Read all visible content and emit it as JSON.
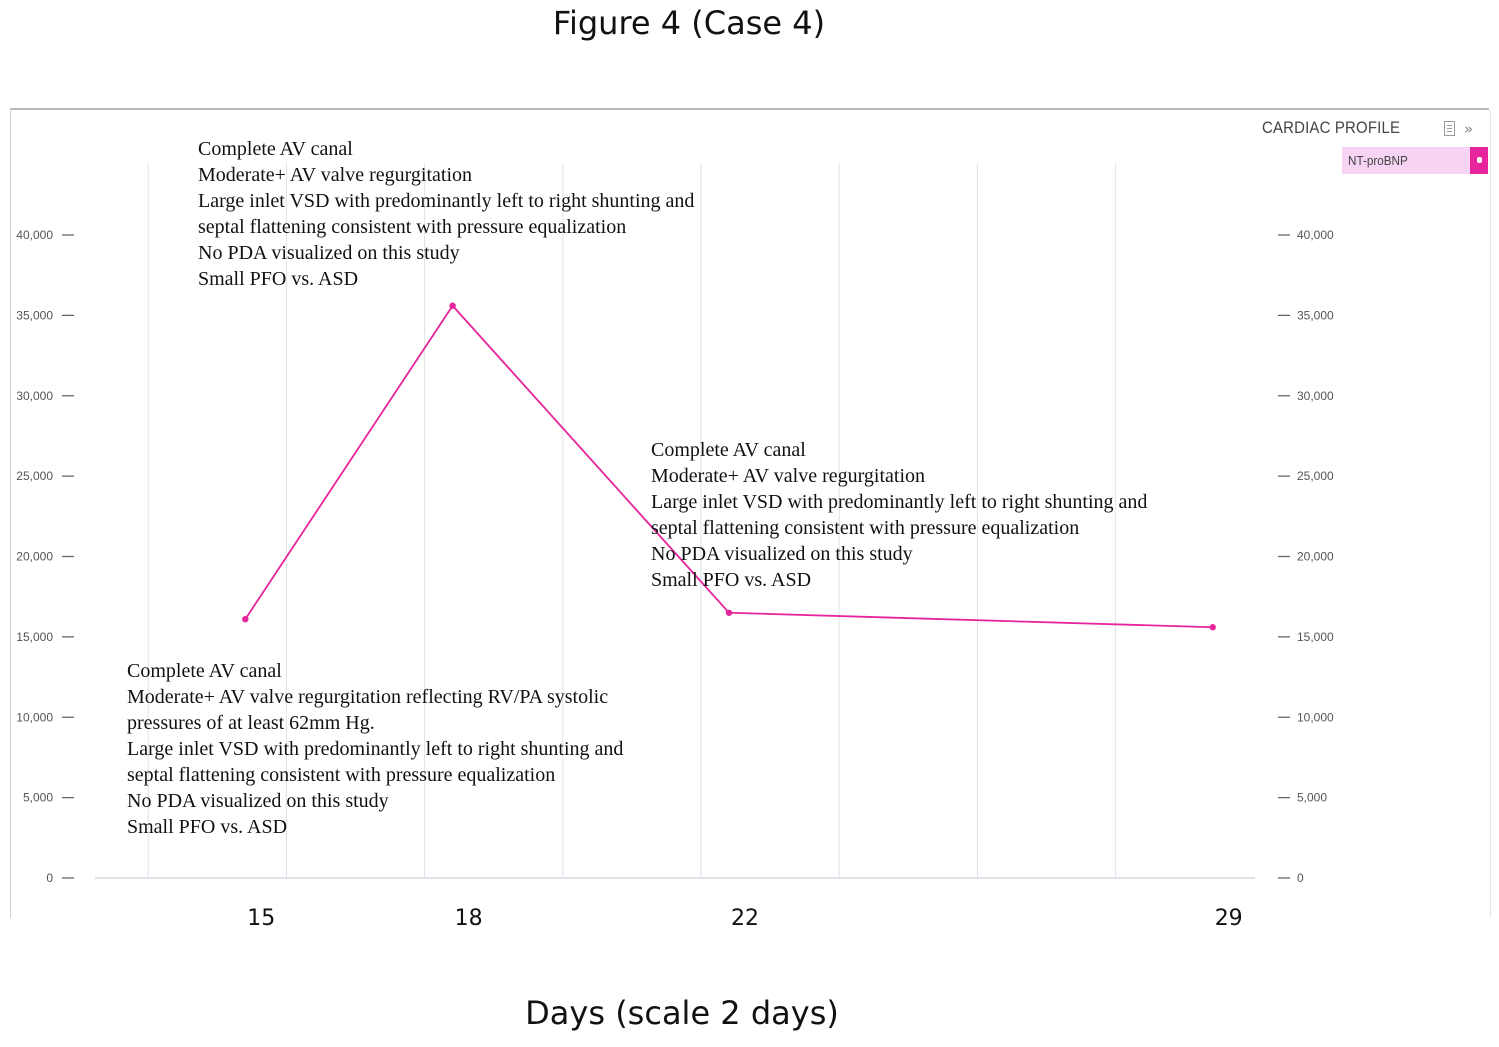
{
  "figure": {
    "title": "Figure 4 (Case 4)",
    "xlabel": "Days (scale 2 days)"
  },
  "legend": {
    "title": "CARDIAC PROFILE",
    "items": [
      {
        "label": "NT-proBNP",
        "color": "#e6249b"
      }
    ]
  },
  "chart_data": {
    "type": "line",
    "title": "Figure 4 (Case 4)",
    "xlabel": "Days (scale 2 days)",
    "ylabel": "",
    "x_ticks": [
      15,
      18,
      22,
      29
    ],
    "y_ticks": [
      0,
      5000,
      10000,
      15000,
      20000,
      25000,
      30000,
      35000,
      40000
    ],
    "y_tick_labels": [
      "0",
      "5,000",
      "10,000",
      "15,000",
      "20,000",
      "25,000",
      "30,000",
      "35,000",
      "40,000"
    ],
    "ylim": [
      0,
      40000
    ],
    "dual_y_axis": true,
    "grid": "vertical",
    "legend_position": "top-right",
    "series": [
      {
        "name": "NT-proBNP",
        "color": "#e6249b",
        "points": [
          {
            "x": 15,
            "y": 16100
          },
          {
            "x": 18,
            "y": 35600
          },
          {
            "x": 22,
            "y": 16500
          },
          {
            "x": 29,
            "y": 15600
          }
        ]
      }
    ],
    "annotations": [
      {
        "lines": [
          "Complete AV canal",
          "Moderate+ AV valve regurgitation",
          "Large inlet VSD with predominantly left to right shunting and",
          "septal flattening consistent with pressure equalization",
          "No PDA visualized on this study",
          "Small PFO vs. ASD"
        ]
      },
      {
        "lines": [
          "Complete AV canal",
          "Moderate+ AV valve regurgitation",
          "Large inlet VSD with predominantly left to right shunting and",
          "septal flattening consistent with pressure equalization",
          "No PDA visualized on this study",
          "Small PFO vs. ASD"
        ]
      },
      {
        "lines": [
          "Complete AV canal",
          "Moderate+ AV valve regurgitation reflecting RV/PA systolic",
          "pressures of at least 62mm Hg.",
          "Large inlet VSD with predominantly left to right shunting and",
          "septal flattening consistent with pressure equalization",
          "No PDA visualized on this study",
          "Small PFO vs. ASD"
        ]
      }
    ]
  }
}
